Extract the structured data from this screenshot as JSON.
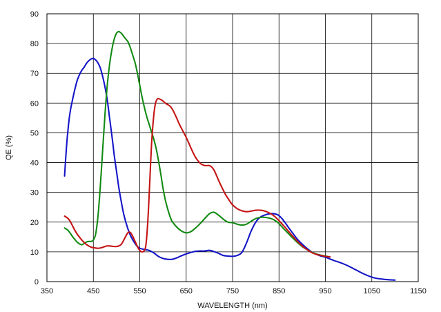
{
  "chart_data": {
    "type": "line",
    "title": "",
    "xlabel": "WAVELENGTH (nm)",
    "ylabel": "QE (%)",
    "xlim": [
      350,
      1150
    ],
    "ylim": [
      0,
      90
    ],
    "x_ticks": [
      350,
      450,
      550,
      650,
      750,
      850,
      950,
      1050,
      1150
    ],
    "y_ticks": [
      0,
      10,
      20,
      30,
      40,
      50,
      60,
      70,
      80,
      90
    ],
    "grid": true,
    "legend": "none",
    "series": [
      {
        "color": "#1515c8",
        "points": [
          [
            388,
            35.5
          ],
          [
            392,
            45
          ],
          [
            396,
            52
          ],
          [
            400,
            57
          ],
          [
            405,
            61
          ],
          [
            410,
            64.5
          ],
          [
            415,
            67.5
          ],
          [
            420,
            69.5
          ],
          [
            425,
            71
          ],
          [
            430,
            72
          ],
          [
            435,
            73.3
          ],
          [
            440,
            74.2
          ],
          [
            445,
            74.8
          ],
          [
            450,
            75
          ],
          [
            455,
            74.5
          ],
          [
            460,
            73.5
          ],
          [
            465,
            71.8
          ],
          [
            470,
            69
          ],
          [
            475,
            65.5
          ],
          [
            480,
            61
          ],
          [
            485,
            55
          ],
          [
            490,
            49
          ],
          [
            495,
            42.5
          ],
          [
            500,
            37
          ],
          [
            505,
            31.5
          ],
          [
            510,
            27
          ],
          [
            515,
            23
          ],
          [
            520,
            20
          ],
          [
            525,
            17.5
          ],
          [
            530,
            15.5
          ],
          [
            535,
            14
          ],
          [
            540,
            12.8
          ],
          [
            545,
            11.8
          ],
          [
            550,
            11.2
          ],
          [
            560,
            10.8
          ],
          [
            570,
            10.5
          ],
          [
            580,
            9.7
          ],
          [
            590,
            8.5
          ],
          [
            600,
            7.8
          ],
          [
            610,
            7.5
          ],
          [
            620,
            7.5
          ],
          [
            630,
            8
          ],
          [
            640,
            8.7
          ],
          [
            650,
            9.3
          ],
          [
            660,
            9.8
          ],
          [
            670,
            10.2
          ],
          [
            680,
            10.3
          ],
          [
            690,
            10.3
          ],
          [
            700,
            10.5
          ],
          [
            710,
            10.1
          ],
          [
            720,
            9.5
          ],
          [
            730,
            8.8
          ],
          [
            740,
            8.6
          ],
          [
            750,
            8.5
          ],
          [
            760,
            8.8
          ],
          [
            770,
            9.8
          ],
          [
            780,
            13
          ],
          [
            790,
            17
          ],
          [
            800,
            20
          ],
          [
            810,
            21.7
          ],
          [
            820,
            22.4
          ],
          [
            830,
            22.8
          ],
          [
            840,
            22.8
          ],
          [
            850,
            22.2
          ],
          [
            860,
            20.5
          ],
          [
            870,
            18.3
          ],
          [
            880,
            16.2
          ],
          [
            890,
            14.2
          ],
          [
            900,
            12.6
          ],
          [
            910,
            11.2
          ],
          [
            920,
            10
          ],
          [
            930,
            9.2
          ],
          [
            940,
            8.6
          ],
          [
            950,
            8.2
          ],
          [
            960,
            7.6
          ],
          [
            970,
            7
          ],
          [
            980,
            6.5
          ],
          [
            990,
            5.9
          ],
          [
            1000,
            5.2
          ],
          [
            1010,
            4.4
          ],
          [
            1020,
            3.6
          ],
          [
            1030,
            2.8
          ],
          [
            1040,
            2.1
          ],
          [
            1050,
            1.5
          ],
          [
            1060,
            1.1
          ],
          [
            1070,
            0.9
          ],
          [
            1080,
            0.7
          ],
          [
            1090,
            0.6
          ],
          [
            1100,
            0.5
          ]
        ]
      },
      {
        "color": "#138a13",
        "points": [
          [
            388,
            18
          ],
          [
            395,
            17.3
          ],
          [
            400,
            16.3
          ],
          [
            405,
            15.2
          ],
          [
            410,
            14.2
          ],
          [
            415,
            13.3
          ],
          [
            420,
            12.7
          ],
          [
            425,
            12.4
          ],
          [
            430,
            12.8
          ],
          [
            435,
            13.3
          ],
          [
            440,
            13.5
          ],
          [
            445,
            13.5
          ],
          [
            450,
            14
          ],
          [
            455,
            16
          ],
          [
            460,
            22
          ],
          [
            465,
            32
          ],
          [
            470,
            44
          ],
          [
            475,
            56
          ],
          [
            480,
            66
          ],
          [
            485,
            73
          ],
          [
            490,
            78
          ],
          [
            495,
            81.5
          ],
          [
            500,
            83.5
          ],
          [
            505,
            84
          ],
          [
            510,
            83.5
          ],
          [
            515,
            82.5
          ],
          [
            520,
            81.5
          ],
          [
            525,
            80.5
          ],
          [
            530,
            78.5
          ],
          [
            535,
            76
          ],
          [
            540,
            73.5
          ],
          [
            545,
            70
          ],
          [
            550,
            66
          ],
          [
            555,
            62
          ],
          [
            560,
            58.5
          ],
          [
            565,
            55.5
          ],
          [
            570,
            53
          ],
          [
            575,
            50.5
          ],
          [
            580,
            48
          ],
          [
            585,
            45
          ],
          [
            590,
            41
          ],
          [
            595,
            36.5
          ],
          [
            600,
            31.5
          ],
          [
            605,
            27.5
          ],
          [
            610,
            24.5
          ],
          [
            615,
            22
          ],
          [
            620,
            20.2
          ],
          [
            630,
            18.3
          ],
          [
            640,
            17
          ],
          [
            650,
            16.4
          ],
          [
            660,
            16.8
          ],
          [
            670,
            18
          ],
          [
            680,
            19.5
          ],
          [
            690,
            21.2
          ],
          [
            700,
            22.8
          ],
          [
            710,
            23.3
          ],
          [
            720,
            22.3
          ],
          [
            730,
            21
          ],
          [
            740,
            20
          ],
          [
            750,
            19.8
          ],
          [
            760,
            19.3
          ],
          [
            770,
            19
          ],
          [
            780,
            19.3
          ],
          [
            790,
            20.3
          ],
          [
            800,
            21.2
          ],
          [
            810,
            21.6
          ],
          [
            820,
            21.6
          ],
          [
            830,
            21.3
          ],
          [
            840,
            20.7
          ],
          [
            850,
            19.5
          ],
          [
            860,
            17.8
          ],
          [
            870,
            16.2
          ],
          [
            880,
            14.6
          ],
          [
            890,
            13.1
          ],
          [
            900,
            11.8
          ],
          [
            910,
            10.8
          ],
          [
            920,
            9.9
          ],
          [
            930,
            9.3
          ],
          [
            940,
            8.9
          ],
          [
            950,
            8.6
          ],
          [
            960,
            8.3
          ]
        ]
      },
      {
        "color": "#c41414",
        "points": [
          [
            388,
            22
          ],
          [
            395,
            21.3
          ],
          [
            400,
            20.3
          ],
          [
            405,
            18.8
          ],
          [
            410,
            17.3
          ],
          [
            415,
            16
          ],
          [
            420,
            15
          ],
          [
            425,
            14
          ],
          [
            430,
            13.2
          ],
          [
            435,
            12.5
          ],
          [
            440,
            12
          ],
          [
            445,
            11.6
          ],
          [
            450,
            11.4
          ],
          [
            455,
            11.3
          ],
          [
            460,
            11.2
          ],
          [
            465,
            11.3
          ],
          [
            470,
            11.5
          ],
          [
            475,
            11.8
          ],
          [
            480,
            12
          ],
          [
            485,
            12
          ],
          [
            490,
            11.9
          ],
          [
            495,
            11.8
          ],
          [
            500,
            11.8
          ],
          [
            505,
            12
          ],
          [
            510,
            12.5
          ],
          [
            515,
            13.8
          ],
          [
            520,
            15.3
          ],
          [
            525,
            16.5
          ],
          [
            530,
            16.5
          ],
          [
            535,
            15.2
          ],
          [
            540,
            13.5
          ],
          [
            545,
            11.8
          ],
          [
            550,
            10.5
          ],
          [
            555,
            10
          ],
          [
            560,
            10.5
          ],
          [
            563,
            12
          ],
          [
            566,
            17
          ],
          [
            569,
            25
          ],
          [
            572,
            35
          ],
          [
            575,
            45
          ],
          [
            578,
            52
          ],
          [
            581,
            57
          ],
          [
            584,
            60
          ],
          [
            587,
            61.2
          ],
          [
            590,
            61.5
          ],
          [
            595,
            61.2
          ],
          [
            600,
            60.7
          ],
          [
            605,
            60
          ],
          [
            610,
            59.5
          ],
          [
            615,
            59
          ],
          [
            620,
            58
          ],
          [
            625,
            56.5
          ],
          [
            630,
            54.8
          ],
          [
            635,
            53
          ],
          [
            640,
            51.5
          ],
          [
            645,
            50
          ],
          [
            650,
            48.5
          ],
          [
            655,
            46.8
          ],
          [
            660,
            45
          ],
          [
            665,
            43.3
          ],
          [
            670,
            41.8
          ],
          [
            675,
            40.7
          ],
          [
            680,
            39.8
          ],
          [
            685,
            39.3
          ],
          [
            690,
            39
          ],
          [
            695,
            39
          ],
          [
            700,
            39
          ],
          [
            705,
            38.5
          ],
          [
            710,
            37.5
          ],
          [
            715,
            35.8
          ],
          [
            720,
            34
          ],
          [
            725,
            32.3
          ],
          [
            730,
            30.7
          ],
          [
            735,
            29.2
          ],
          [
            740,
            28
          ],
          [
            745,
            26.8
          ],
          [
            750,
            25.8
          ],
          [
            760,
            24.5
          ],
          [
            770,
            23.8
          ],
          [
            780,
            23.5
          ],
          [
            790,
            23.7
          ],
          [
            800,
            24
          ],
          [
            810,
            24
          ],
          [
            820,
            23.7
          ],
          [
            830,
            23
          ],
          [
            840,
            22
          ],
          [
            850,
            20.5
          ],
          [
            860,
            18.8
          ],
          [
            870,
            17
          ],
          [
            880,
            15.2
          ],
          [
            890,
            13.5
          ],
          [
            900,
            12
          ],
          [
            910,
            10.8
          ],
          [
            920,
            9.8
          ],
          [
            930,
            9.2
          ],
          [
            940,
            8.8
          ],
          [
            950,
            8.5
          ],
          [
            960,
            8.3
          ]
        ]
      }
    ]
  }
}
